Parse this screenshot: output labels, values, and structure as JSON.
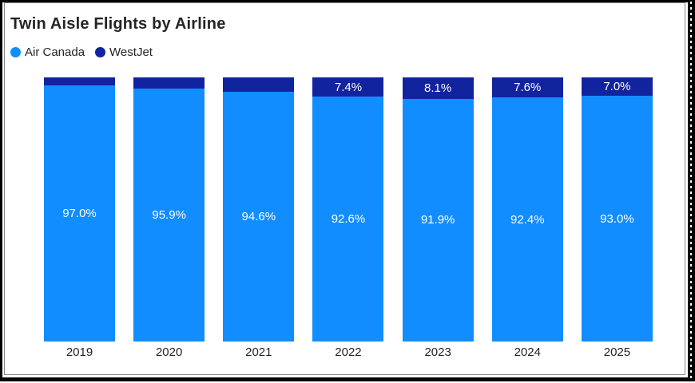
{
  "chart_data": {
    "type": "bar",
    "stacked": true,
    "percent_stacked": true,
    "title": "Twin Aisle Flights by Airline",
    "categories": [
      "2019",
      "2020",
      "2021",
      "2022",
      "2023",
      "2024",
      "2025"
    ],
    "series": [
      {
        "name": "Air Canada",
        "color": "#118DFF",
        "values": [
          97.0,
          95.9,
          94.6,
          92.6,
          91.9,
          92.4,
          93.0
        ],
        "data_labels": [
          "97.0%",
          "95.9%",
          "94.6%",
          "92.6%",
          "91.9%",
          "92.4%",
          "93.0%"
        ]
      },
      {
        "name": "WestJet",
        "color": "#12239E",
        "values": [
          3.0,
          4.1,
          5.4,
          7.4,
          8.1,
          7.6,
          7.0
        ],
        "data_labels": [
          "",
          "",
          "",
          "7.4%",
          "8.1%",
          "7.6%",
          "7.0%"
        ]
      }
    ],
    "ylim": [
      0,
      100
    ],
    "grid": false,
    "legend_position": "top-left",
    "data_label_color": "#ffffff",
    "axis_label_color": "#252423",
    "title_color": "#252423"
  },
  "frame": {
    "border_color": "#000000",
    "hairline_color": "#888888",
    "background": "#ffffff"
  }
}
